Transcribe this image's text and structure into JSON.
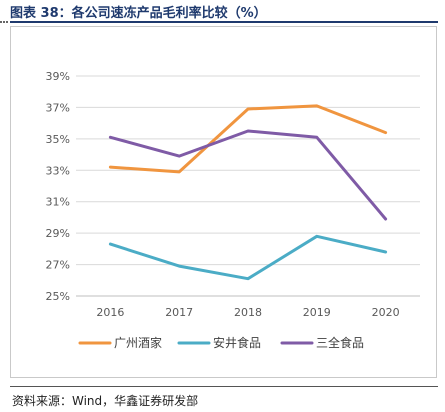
{
  "figure": {
    "title": "图表 38：各公司速冻产品毛利率比较（%）",
    "source": "资料来源：Wind，华鑫证券研发部"
  },
  "chart_data": {
    "type": "line",
    "title": "",
    "xlabel": "",
    "ylabel": "",
    "x": [
      "2016",
      "2017",
      "2018",
      "2019",
      "2020"
    ],
    "ylim": [
      25,
      39
    ],
    "yticks": [
      25,
      27,
      29,
      31,
      33,
      35,
      37,
      39
    ],
    "ytick_labels": [
      "25%",
      "27%",
      "29%",
      "31%",
      "33%",
      "35%",
      "37%",
      "39%"
    ],
    "grid": true,
    "legend_position": "bottom",
    "series": [
      {
        "name": "广州酒家",
        "color": "#F0953F",
        "values": [
          33.2,
          32.9,
          36.9,
          37.1,
          35.4
        ]
      },
      {
        "name": "安井食品",
        "color": "#4BACC6",
        "values": [
          28.3,
          26.9,
          26.1,
          28.8,
          27.8
        ]
      },
      {
        "name": "三全食品",
        "color": "#7F5BA6",
        "values": [
          35.1,
          33.9,
          35.5,
          35.1,
          29.9
        ]
      }
    ]
  }
}
